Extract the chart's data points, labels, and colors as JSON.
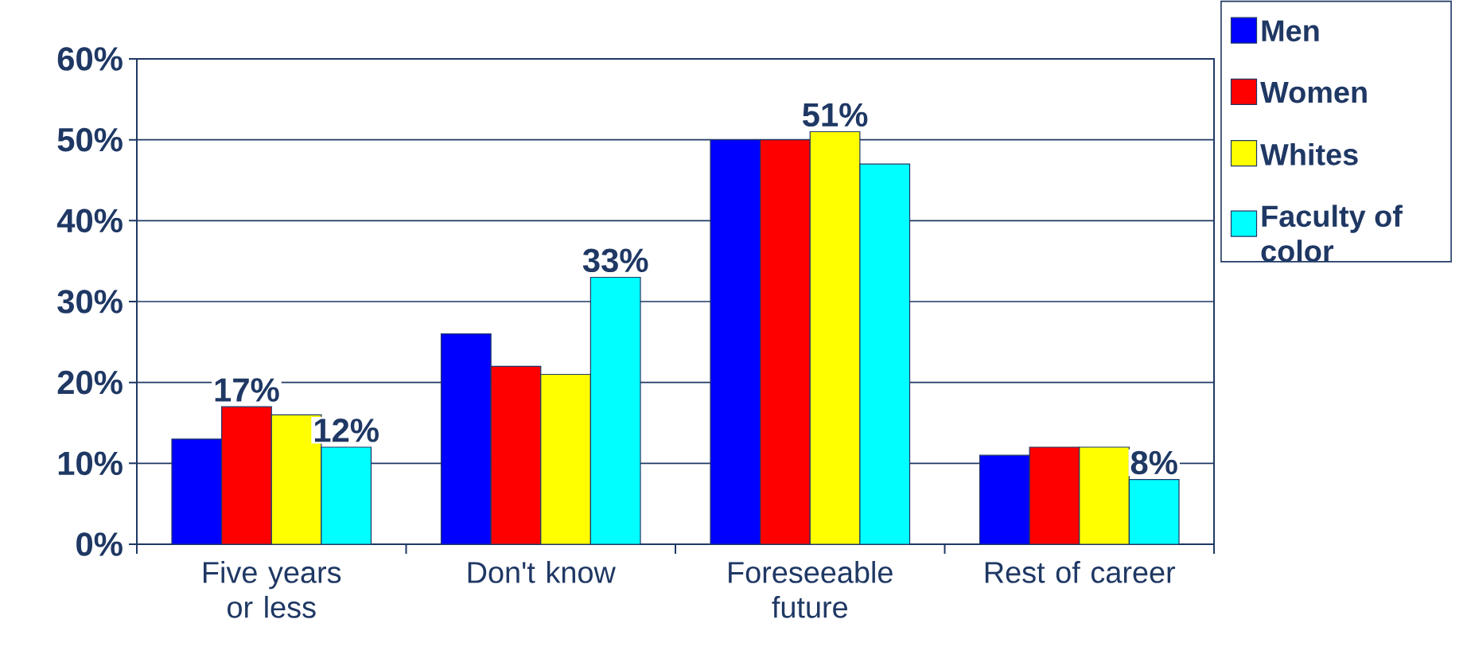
{
  "chart_data": {
    "type": "bar",
    "categories": [
      "Five years or less",
      "Don't know",
      "Foreseeable future",
      "Rest of career"
    ],
    "series": [
      {
        "name": "Men",
        "color": "#0000ff",
        "values": [
          13,
          26,
          50,
          11
        ],
        "value_labels": [
          null,
          null,
          null,
          null
        ]
      },
      {
        "name": "Women",
        "color": "#ff0000",
        "values": [
          17,
          22,
          50,
          12
        ],
        "value_labels": [
          "17%",
          null,
          null,
          null
        ]
      },
      {
        "name": "Whites",
        "color": "#ffff00",
        "values": [
          16,
          21,
          51,
          12
        ],
        "value_labels": [
          null,
          null,
          "51%",
          null
        ]
      },
      {
        "name": "Faculty of color",
        "color": "#00ffff",
        "values": [
          12,
          33,
          47,
          8
        ],
        "value_labels": [
          "12%",
          "33%",
          null,
          "8%"
        ]
      }
    ],
    "ylim": [
      0,
      60
    ],
    "yticks": [
      {
        "value": 0,
        "label": "0%"
      },
      {
        "value": 10,
        "label": "10%"
      },
      {
        "value": 20,
        "label": "20%"
      },
      {
        "value": 30,
        "label": "30%"
      },
      {
        "value": 40,
        "label": "40%"
      },
      {
        "value": 50,
        "label": "50%"
      },
      {
        "value": 60,
        "label": "60%"
      }
    ],
    "grid": "y",
    "legend": "right"
  }
}
